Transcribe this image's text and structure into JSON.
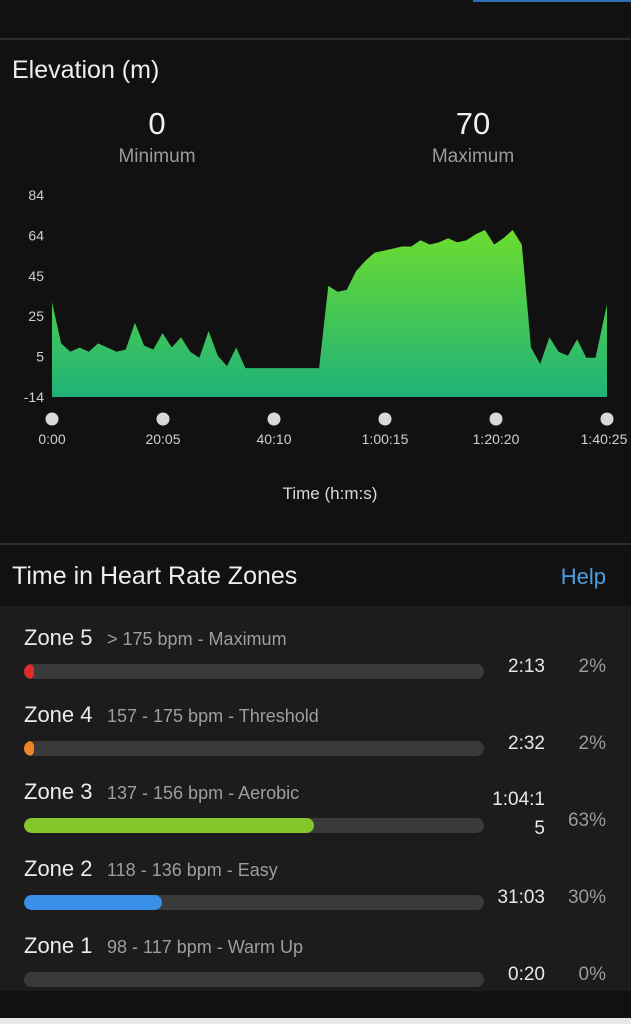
{
  "elevation": {
    "title": "Elevation (m)",
    "minimum": {
      "value": "0",
      "label": "Minimum"
    },
    "maximum": {
      "value": "70",
      "label": "Maximum"
    }
  },
  "chart_data": {
    "type": "area",
    "title": "Elevation (m)",
    "xlabel": "Time (h:m:s)",
    "ylabel": "",
    "y_ticks": [
      "84",
      "64",
      "45",
      "25",
      "5",
      "-14"
    ],
    "ylim": [
      -14,
      84
    ],
    "x_ticks": [
      "0:00",
      "20:05",
      "40:10",
      "1:00:15",
      "1:20:20",
      "1:40:25"
    ],
    "x_seconds": [
      0,
      100,
      200,
      300,
      400,
      500,
      600,
      700,
      800,
      900,
      1000,
      1100,
      1200,
      1300,
      1400,
      1500,
      1600,
      1700,
      1800,
      1900,
      2000,
      2100,
      2200,
      2300,
      2400,
      2500,
      2600,
      2700,
      2800,
      2900,
      3000,
      3100,
      3200,
      3300,
      3400,
      3500,
      3600,
      3700,
      3800,
      3900,
      4000,
      4100,
      4200,
      4300,
      4400,
      4500,
      4600,
      4700,
      4800,
      4900,
      5000,
      5100,
      5200,
      5300,
      5400,
      5500,
      5600,
      5700,
      5800,
      5900,
      6025
    ],
    "values": [
      32,
      12,
      8,
      10,
      8,
      12,
      10,
      8,
      9,
      22,
      11,
      9,
      17,
      10,
      15,
      8,
      5,
      18,
      6,
      1,
      10,
      0,
      0,
      0,
      0,
      0,
      0,
      0,
      0,
      0,
      40,
      37,
      38,
      47,
      52,
      56,
      57,
      58,
      59,
      59,
      62,
      60,
      61,
      63,
      61,
      62,
      65,
      67,
      60,
      63,
      67,
      60,
      10,
      2,
      15,
      8,
      6,
      14,
      5,
      5,
      31
    ],
    "fill_top_color": "#6bdc2e",
    "fill_bottom_color": "#1fb27a",
    "grid": false,
    "legend": "none"
  },
  "hr_zones": {
    "title": "Time in Heart Rate Zones",
    "help_label": "Help",
    "zones": [
      {
        "name": "Zone 5",
        "range": "> 175 bpm - Maximum",
        "time": "2:13",
        "percent": "2%",
        "fraction": 0.02,
        "color": "#e02b2b"
      },
      {
        "name": "Zone 4",
        "range": "157 - 175 bpm - Threshold",
        "time": "2:32",
        "percent": "2%",
        "fraction": 0.02,
        "color": "#f0842a"
      },
      {
        "name": "Zone 3",
        "range": "137 - 156 bpm - Aerobic",
        "time": "1:04:15",
        "percent": "63%",
        "fraction": 0.63,
        "color": "#84c72a"
      },
      {
        "name": "Zone 2",
        "range": "118 - 136 bpm - Easy",
        "time": "31:03",
        "percent": "30%",
        "fraction": 0.3,
        "color": "#3a8fe8"
      },
      {
        "name": "Zone 1",
        "range": "98 - 117 bpm - Warm Up",
        "time": "0:20",
        "percent": "0%",
        "fraction": 0.0,
        "color": "#8a8a8a"
      }
    ]
  }
}
